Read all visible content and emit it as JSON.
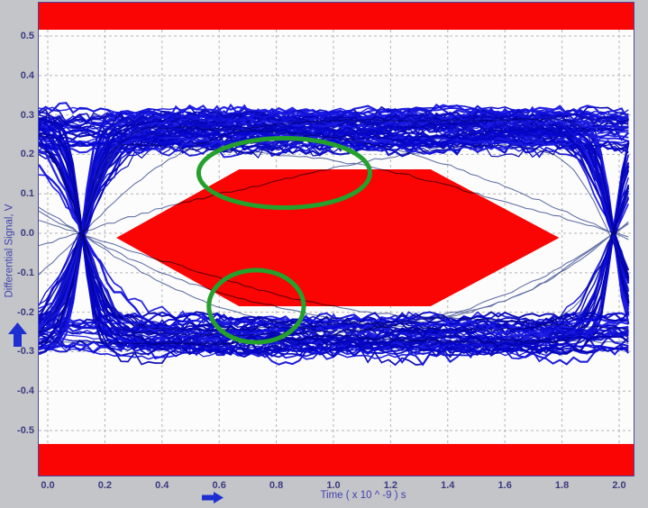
{
  "panel": {
    "type": "eye-diagram-measurement-view",
    "background": "#c4c5c8"
  },
  "colors": {
    "mask_red": "#fa0404",
    "annotation_green": "#24a02c",
    "panel_gray": "#c4c5c8",
    "plot_bg": "#fcfcfc",
    "grid": "#b4b4b4",
    "tick_text": "#3b3b80",
    "axis_text": "#4040b0",
    "border": "#4747a3",
    "arrow_blue": "#1e2fd2"
  },
  "chart_data": {
    "type": "line",
    "subtype": "eye-diagram",
    "title": "",
    "xlabel": "Time  ( x 10 ^ -9 ) s",
    "ylabel": "Differential Signal, V",
    "grid": true,
    "x_range_ns": [
      -0.0315,
      2.0505
    ],
    "y_range_v": [
      -0.6141,
      0.5845
    ],
    "x_ticks": [
      {
        "label": "0.0",
        "value": 0.0
      },
      {
        "label": "0.2",
        "value": 0.2
      },
      {
        "label": "0.4",
        "value": 0.4
      },
      {
        "label": "0.6",
        "value": 0.6
      },
      {
        "label": "0.8",
        "value": 0.8
      },
      {
        "label": "1.0",
        "value": 1.0
      },
      {
        "label": "1.2",
        "value": 1.2
      },
      {
        "label": "1.4",
        "value": 1.4
      },
      {
        "label": "1.6",
        "value": 1.6
      },
      {
        "label": "1.8",
        "value": 1.8
      },
      {
        "label": "2.0",
        "value": 2.0
      }
    ],
    "y_ticks": [
      {
        "label": "0.5",
        "value": 0.5
      },
      {
        "label": "0.4",
        "value": 0.4
      },
      {
        "label": "0.3",
        "value": 0.3
      },
      {
        "label": "0.2",
        "value": 0.2
      },
      {
        "label": "0.1",
        "value": 0.1
      },
      {
        "label": "0.0",
        "value": 0.0
      },
      {
        "label": "-0.1",
        "value": -0.1
      },
      {
        "label": "-0.2",
        "value": -0.2
      },
      {
        "label": "-0.3",
        "value": -0.3
      },
      {
        "label": "-0.4",
        "value": -0.4
      },
      {
        "label": "-0.5",
        "value": -0.5
      }
    ],
    "mask": {
      "color": "#fa0404",
      "top_bar_v_min": 0.516,
      "bottom_bar_v_max": -0.534,
      "hexagon_ns_v": [
        [
          0.24,
          -0.0115
        ],
        [
          0.67,
          0.162
        ],
        [
          1.34,
          0.162
        ],
        [
          1.79,
          -0.0115
        ],
        [
          1.34,
          -0.185
        ],
        [
          0.67,
          -0.185
        ]
      ]
    },
    "eye": {
      "trace_color_palette": [
        "#0505cd",
        "#1212dc",
        "#0909bf",
        "#1b1be4",
        "#0303b2"
      ],
      "outlier_color": "#5f6ea6",
      "n_traces": 112,
      "n_outlier_traces": 10,
      "crossing_times_ns": [
        0.12,
        1.98
      ],
      "rail_level_v": [
        0.215,
        0.305
      ],
      "noise_v": 0.012,
      "sample_step_ns": 0.024
    },
    "violations": [
      {
        "cx_ns": 0.828,
        "cy_v": 0.153,
        "rx_ns": 0.3,
        "ry_v": 0.088
      },
      {
        "cx_ns": 0.73,
        "cy_v": -0.185,
        "rx_ns": 0.166,
        "ry_v": 0.0915
      }
    ],
    "annotation_color": "#24a02c"
  },
  "arrows": {
    "y_axis": {
      "direction": "up"
    },
    "x_axis": {
      "direction": "right"
    }
  }
}
